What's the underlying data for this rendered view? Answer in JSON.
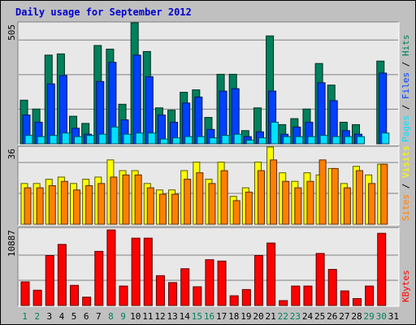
{
  "title": "Daily usage for September 2012",
  "colors": {
    "title": "#0000cc",
    "frame_bg": "#c0c0c0",
    "plot_bg": "#e8e8e8",
    "grid": "#808080",
    "hits": "#00805c",
    "files": "#0040ff",
    "pages": "#00e0ff",
    "visits": "#ffff00",
    "sites": "#ff8000",
    "kbytes": "#ff0000",
    "weekday_label": "#000000",
    "weekend_label": "#00805c"
  },
  "chart_data": [
    {
      "type": "bar",
      "title": "Daily usage for September 2012",
      "categories": [
        "1",
        "2",
        "3",
        "4",
        "5",
        "6",
        "7",
        "8",
        "9",
        "10",
        "11",
        "12",
        "13",
        "14",
        "15",
        "16",
        "17",
        "18",
        "19",
        "20",
        "21",
        "22",
        "23",
        "24",
        "25",
        "26",
        "27",
        "28",
        "29",
        "30",
        "31"
      ],
      "weekend_categories": [
        "1",
        "2",
        "8",
        "9",
        "15",
        "16",
        "22",
        "23",
        "29",
        "30"
      ],
      "ylim": [
        0,
        505
      ],
      "ymax_label": "505",
      "series": [
        {
          "name": "Hits",
          "values": [
            182,
            145,
            370,
            375,
            115,
            85,
            410,
            395,
            165,
            505,
            385,
            150,
            140,
            215,
            225,
            110,
            290,
            290,
            55,
            150,
            450,
            80,
            105,
            145,
            335,
            245,
            90,
            80,
            0,
            345,
            0
          ]
        },
        {
          "name": "Files",
          "values": [
            120,
            90,
            250,
            285,
            65,
            40,
            260,
            340,
            100,
            370,
            280,
            120,
            90,
            170,
            195,
            60,
            220,
            230,
            30,
            50,
            220,
            40,
            70,
            90,
            255,
            180,
            55,
            40,
            0,
            295,
            0
          ]
        },
        {
          "name": "Pages",
          "values": [
            35,
            30,
            35,
            45,
            30,
            35,
            40,
            70,
            40,
            45,
            45,
            20,
            25,
            30,
            30,
            25,
            35,
            40,
            15,
            25,
            90,
            30,
            30,
            30,
            35,
            30,
            30,
            30,
            0,
            45,
            0
          ]
        }
      ],
      "legend": [
        "Pages",
        "Files",
        "Hits"
      ]
    },
    {
      "type": "bar",
      "ylim": [
        0,
        36
      ],
      "ymax_label": "36",
      "series": [
        {
          "name": "Visits",
          "values": [
            19,
            19,
            21,
            22,
            19,
            21,
            22,
            30,
            25,
            25,
            19,
            16,
            16,
            25,
            29,
            21,
            29,
            13,
            17,
            29,
            36,
            24,
            20,
            24,
            23,
            26,
            19,
            27,
            23,
            28,
            0
          ]
        },
        {
          "name": "Sites",
          "values": [
            17,
            17,
            18,
            20,
            16,
            18,
            19,
            22,
            23,
            23,
            17,
            14,
            14,
            21,
            24,
            19,
            25,
            11,
            15,
            25,
            30,
            20,
            17,
            20,
            30,
            26,
            17,
            25,
            19,
            28,
            0
          ]
        }
      ],
      "legend": [
        "Sites",
        "Visits"
      ]
    },
    {
      "type": "bar",
      "ylim": [
        0,
        10887
      ],
      "ymax_label": "10887",
      "series": [
        {
          "name": "KBytes",
          "values": [
            3400,
            2200,
            7200,
            8800,
            2900,
            1200,
            7800,
            10887,
            2800,
            9700,
            9700,
            4300,
            3300,
            5300,
            2700,
            6600,
            6400,
            1400,
            2300,
            7200,
            9000,
            700,
            2800,
            2800,
            7500,
            5200,
            2100,
            1000,
            2800,
            10400,
            0
          ]
        }
      ],
      "legend": [
        "KBytes"
      ]
    }
  ]
}
